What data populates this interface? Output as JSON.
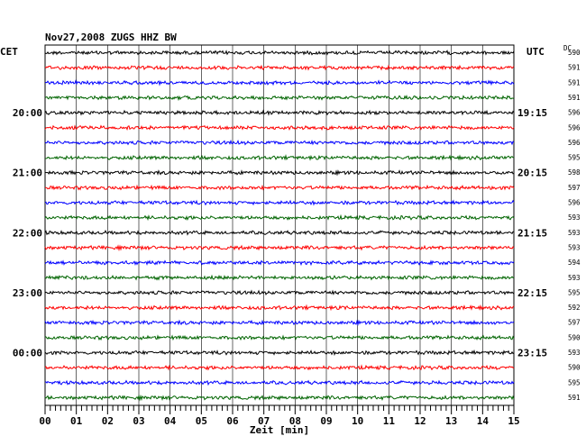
{
  "chart_data": {
    "type": "line",
    "title": "Nov27,2008   ZUGS HHZ BW",
    "left_timezone": "CET",
    "right_timezone": "UTC",
    "dc_header": "DC",
    "xlabel": "Zeit [min]",
    "xlim": [
      0,
      15
    ],
    "x_tick_labels": [
      "00",
      "01",
      "02",
      "03",
      "04",
      "05",
      "06",
      "07",
      "08",
      "09",
      "10",
      "11",
      "12",
      "13",
      "14",
      "15"
    ],
    "left_hour_labels": [
      {
        "row": 4,
        "text": "20:00"
      },
      {
        "row": 8,
        "text": "21:00"
      },
      {
        "row": 12,
        "text": "22:00"
      },
      {
        "row": 16,
        "text": "23:00"
      },
      {
        "row": 20,
        "text": "00:00"
      }
    ],
    "right_hour_labels": [
      {
        "row": 4,
        "text": "19:15"
      },
      {
        "row": 8,
        "text": "20:15"
      },
      {
        "row": 12,
        "text": "21:15"
      },
      {
        "row": 16,
        "text": "22:15"
      },
      {
        "row": 20,
        "text": "23:15"
      }
    ],
    "trace_colors": [
      "#000000",
      "#ff0000",
      "#0000ff",
      "#006400"
    ],
    "dc_values": [
      590,
      591,
      591,
      591,
      596,
      596,
      596,
      595,
      598,
      597,
      596,
      593,
      593,
      593,
      594,
      593,
      595,
      592,
      597,
      590,
      593,
      590,
      595,
      591
    ],
    "trace_count": 24,
    "grid": true
  }
}
